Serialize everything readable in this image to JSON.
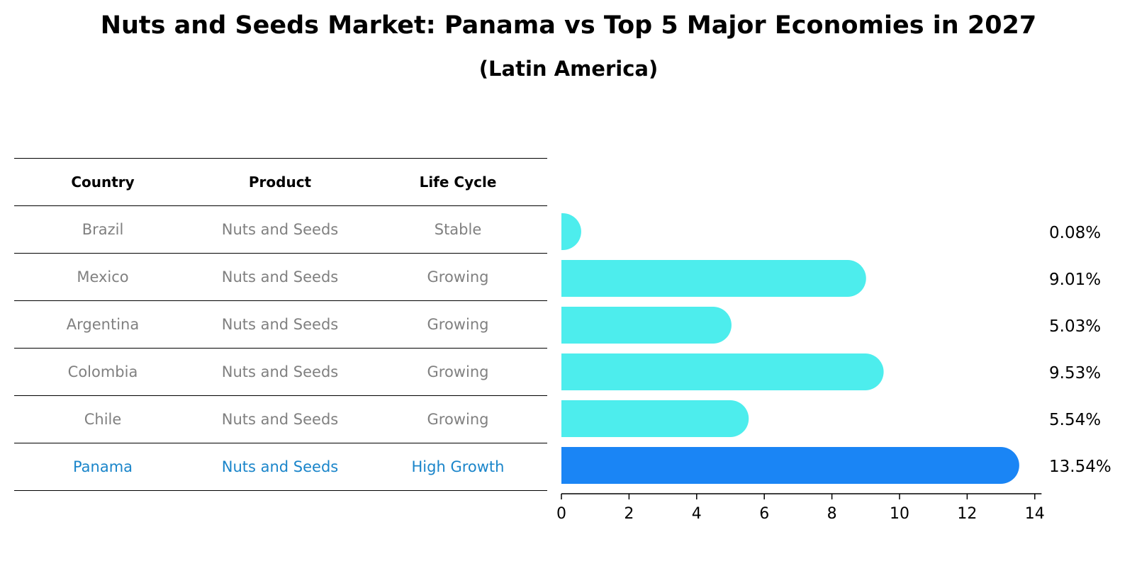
{
  "title": "Nuts and Seeds Market: Panama vs Top 5 Major Economies in 2027",
  "subtitle": "(Latin America)",
  "table": {
    "headers": [
      "Country",
      "Product",
      "Life Cycle"
    ],
    "rows": [
      {
        "country": "Brazil",
        "product": "Nuts and Seeds",
        "life_cycle": "Stable"
      },
      {
        "country": "Mexico",
        "product": "Nuts and Seeds",
        "life_cycle": "Growing"
      },
      {
        "country": "Argentina",
        "product": "Nuts and Seeds",
        "life_cycle": "Growing"
      },
      {
        "country": "Colombia",
        "product": "Nuts and Seeds",
        "life_cycle": "Growing"
      },
      {
        "country": "Chile",
        "product": "Nuts and Seeds",
        "life_cycle": "Growing"
      },
      {
        "country": "Panama",
        "product": "Nuts and Seeds",
        "life_cycle": "High Growth"
      }
    ]
  },
  "colors": {
    "bar": "#4deded",
    "highlight_bar": "#1a85f5",
    "highlight_text": "#1a85ca",
    "muted_text": "#808080"
  },
  "chart_data": {
    "type": "bar",
    "orientation": "horizontal",
    "categories": [
      "Brazil",
      "Mexico",
      "Argentina",
      "Colombia",
      "Chile",
      "Panama"
    ],
    "values": [
      0.08,
      9.01,
      5.03,
      9.53,
      5.54,
      13.54
    ],
    "value_labels": [
      "0.08%",
      "9.01%",
      "5.03%",
      "9.53%",
      "5.54%",
      "13.54%"
    ],
    "highlight": "Panama",
    "xlim": [
      0,
      14.2
    ],
    "xticks": [
      0,
      2,
      4,
      6,
      8,
      10,
      12,
      14
    ],
    "title": "Nuts and Seeds Market: Panama vs Top 5 Major Economies in 2027",
    "xlabel": "",
    "ylabel": ""
  }
}
